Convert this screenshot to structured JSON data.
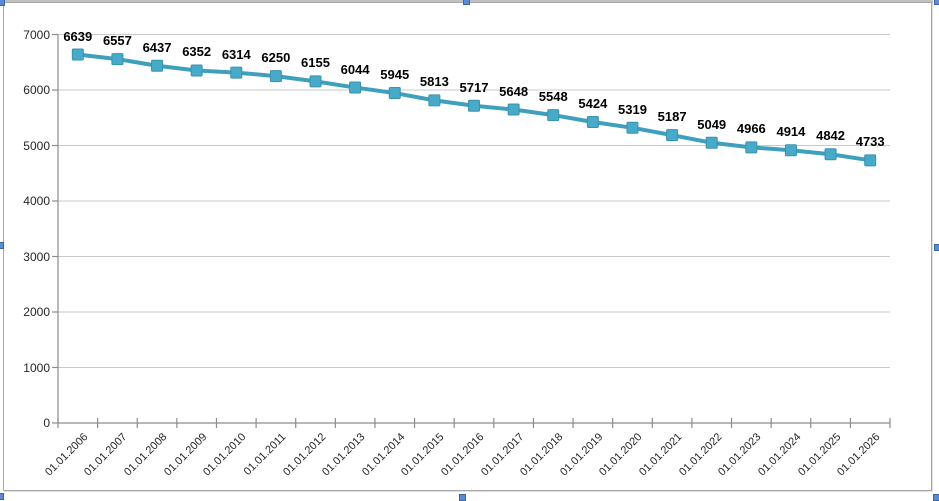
{
  "window": {
    "background": "#ffffff",
    "top_edge_color": "#c1c1c1"
  },
  "chart": {
    "selected": true,
    "frame_border_color": "#a8a8a8",
    "handle_fill": "#5b8bd0",
    "handle_border": "#3a65a0"
  },
  "chart_data": {
    "type": "line",
    "title": "",
    "xlabel": "",
    "ylabel": "",
    "legend": "none",
    "grid": "horizontal",
    "marker": "square",
    "data_labels_shown": true,
    "categories": [
      "01.01.2006",
      "01.01.2007",
      "01.01.2008",
      "01.01.2009",
      "01.01.2010",
      "01.01.2011",
      "01.01.2012",
      "01.01.2013",
      "01.01.2014",
      "01.01.2015",
      "01.01.2016",
      "01.01.2017",
      "01.01.2018",
      "01.01.2019",
      "01.01.2020",
      "01.01.2021",
      "01.01.2022",
      "01.01.2023",
      "01.01.2024",
      "01.01.2025",
      "01.01.2026"
    ],
    "values": [
      6639,
      6557,
      6437,
      6352,
      6314,
      6250,
      6155,
      6044,
      5945,
      5813,
      5717,
      5648,
      5548,
      5424,
      5319,
      5187,
      5049,
      4966,
      4914,
      4842,
      4733
    ],
    "ylim": [
      0,
      7000
    ],
    "yticks": [
      0,
      1000,
      2000,
      3000,
      4000,
      5000,
      6000,
      7000
    ],
    "line_color": "#3fa0be",
    "marker_color": "#46aac8",
    "marker_border_color": "#3c92ae",
    "gridline_color": "#c9c9c9",
    "axis_color": "#8c8c8c",
    "tick_label_color": "#262626",
    "data_label_color": "#000000"
  }
}
